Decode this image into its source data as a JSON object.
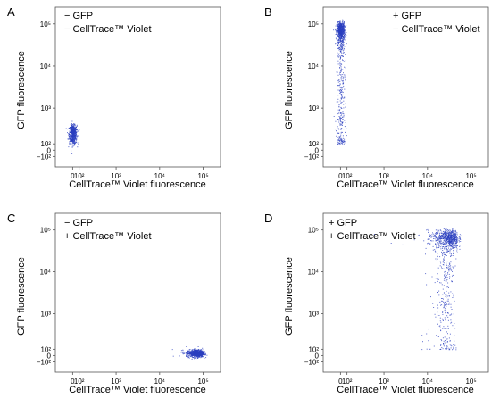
{
  "chart_data": [
    {
      "type": "scatter",
      "panel_label": "A",
      "legend": [
        "− GFP",
        "− CellTrace™ Violet"
      ],
      "legend_position": "top-left",
      "xlabel": "CellTrace™ Violet fluorescence",
      "ylabel": "GFP fluorescence",
      "xscale": "biexponential",
      "yscale": "biexponential",
      "x_ticks": [
        {
          "value": 0,
          "label": "0"
        },
        {
          "value": 100,
          "label": "10²"
        },
        {
          "value": 1000,
          "label": "10³"
        },
        {
          "value": 10000,
          "label": "10⁴"
        },
        {
          "value": 100000,
          "label": "10⁵"
        }
      ],
      "y_ticks": [
        {
          "value": -100,
          "label": "−10²"
        },
        {
          "value": 0,
          "label": "0"
        },
        {
          "value": 100,
          "label": "10²"
        },
        {
          "value": 1000,
          "label": "10³"
        },
        {
          "value": 10000,
          "label": "10⁴"
        },
        {
          "value": 100000,
          "label": "10⁵"
        }
      ],
      "series": [
        {
          "color": "#2b3fbf",
          "clusters": [
            {
              "x_center": 0,
              "y_center": 250,
              "x_spread": 60,
              "y_spread": 150,
              "count": 600
            }
          ]
        }
      ]
    },
    {
      "type": "scatter",
      "panel_label": "B",
      "legend": [
        "+ GFP",
        "− CellTrace™ Violet"
      ],
      "legend_position": "top-right",
      "xlabel": "CellTrace™ Violet fluorescence",
      "ylabel": "GFP fluorescence",
      "xscale": "biexponential",
      "yscale": "biexponential",
      "x_ticks": [
        {
          "value": 0,
          "label": "0"
        },
        {
          "value": 100,
          "label": "10²"
        },
        {
          "value": 1000,
          "label": "10³"
        },
        {
          "value": 10000,
          "label": "10⁴"
        },
        {
          "value": 100000,
          "label": "10⁵"
        }
      ],
      "y_ticks": [
        {
          "value": -100,
          "label": "−10²"
        },
        {
          "value": 0,
          "label": "0"
        },
        {
          "value": 100,
          "label": "10²"
        },
        {
          "value": 1000,
          "label": "10³"
        },
        {
          "value": 10000,
          "label": "10⁴"
        },
        {
          "value": 100000,
          "label": "10⁵"
        }
      ],
      "series": [
        {
          "color": "#2b3fbf",
          "clusters": [
            {
              "x_center": 0,
              "y_center": 70000,
              "x_spread": 60,
              "y_spread": 40000,
              "count": 700
            },
            {
              "x_center": 0,
              "y_range": [
                100,
                40000
              ],
              "x_spread": 70,
              "count": 300
            }
          ]
        }
      ]
    },
    {
      "type": "scatter",
      "panel_label": "C",
      "legend": [
        "− GFP",
        "+ CellTrace™ Violet"
      ],
      "legend_position": "top-left",
      "xlabel": "CellTrace™ Violet fluorescence",
      "ylabel": "GFP fluorescence",
      "xscale": "biexponential",
      "yscale": "biexponential",
      "x_ticks": [
        {
          "value": 0,
          "label": "0"
        },
        {
          "value": 100,
          "label": "10²"
        },
        {
          "value": 1000,
          "label": "10³"
        },
        {
          "value": 10000,
          "label": "10⁴"
        },
        {
          "value": 100000,
          "label": "10⁵"
        }
      ],
      "y_ticks": [
        {
          "value": -100,
          "label": "−10²"
        },
        {
          "value": 0,
          "label": "0"
        },
        {
          "value": 100,
          "label": "10²"
        },
        {
          "value": 1000,
          "label": "10³"
        },
        {
          "value": 10000,
          "label": "10⁴"
        },
        {
          "value": 100000,
          "label": "10⁵"
        }
      ],
      "series": [
        {
          "color": "#2b3fbf",
          "clusters": [
            {
              "x_center": 70000,
              "y_center": 40,
              "x_spread": 30000,
              "y_spread": 60,
              "count": 800
            }
          ]
        }
      ]
    },
    {
      "type": "scatter",
      "panel_label": "D",
      "legend": [
        "+ GFP",
        "+ CellTrace™ Violet"
      ],
      "legend_position": "top-left",
      "xlabel": "CellTrace™ Violet fluorescence",
      "ylabel": "GFP fluorescence",
      "xscale": "biexponential",
      "yscale": "biexponential",
      "x_ticks": [
        {
          "value": 0,
          "label": "0"
        },
        {
          "value": 100,
          "label": "10²"
        },
        {
          "value": 1000,
          "label": "10³"
        },
        {
          "value": 10000,
          "label": "10⁴"
        },
        {
          "value": 100000,
          "label": "10⁵"
        }
      ],
      "y_ticks": [
        {
          "value": -100,
          "label": "−10²"
        },
        {
          "value": 0,
          "label": "0"
        },
        {
          "value": 100,
          "label": "10²"
        },
        {
          "value": 1000,
          "label": "10³"
        },
        {
          "value": 10000,
          "label": "10⁴"
        },
        {
          "value": 100000,
          "label": "10⁵"
        }
      ],
      "series": [
        {
          "color": "#2b3fbf",
          "clusters": [
            {
              "x_center": 30000,
              "y_center": 65000,
              "x_spread": 20000,
              "y_spread": 35000,
              "count": 700
            },
            {
              "x_center": 25000,
              "y_range": [
                100,
                40000
              ],
              "x_spread": 15000,
              "count": 300
            }
          ]
        }
      ]
    }
  ]
}
